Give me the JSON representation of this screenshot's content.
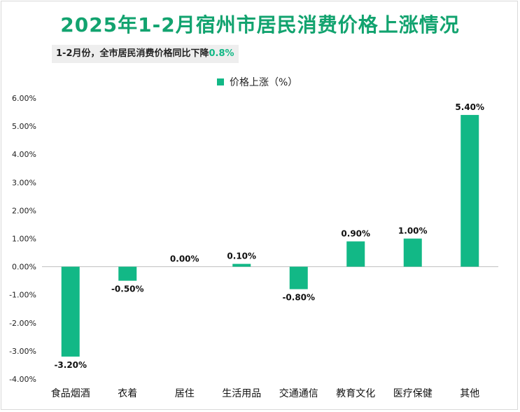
{
  "chart_data": {
    "type": "bar",
    "title": "2025年1-2月宿州市居民消费价格上涨情况",
    "subtitle": {
      "text": "1-2月份，全市居民消费价格同比下降",
      "highlight": "0.8%"
    },
    "legend_position": "top-center",
    "grid": false,
    "ylim": [
      -4.0,
      6.0
    ],
    "yticks": [
      "6.00%",
      "5.00%",
      "4.00%",
      "3.00%",
      "2.00%",
      "1.00%",
      "0.00%",
      "-1.00%",
      "-2.00%",
      "-3.00%",
      "-4.00%"
    ],
    "categories": [
      "食品烟酒",
      "衣着",
      "居住",
      "生活用品",
      "交通通信",
      "教育文化",
      "医疗保健",
      "其他"
    ],
    "series": [
      {
        "name": "价格上涨（%）",
        "values": [
          -3.2,
          -0.5,
          0.0,
          0.1,
          -0.8,
          0.9,
          1.0,
          5.4
        ],
        "labels": [
          "-3.20%",
          "-0.50%",
          "0.00%",
          "0.10%",
          "-0.80%",
          "0.90%",
          "1.00%",
          "5.40%"
        ]
      }
    ],
    "colors": {
      "bar": "#12b886",
      "title": "#12a36f",
      "axis": "#bfbfbf"
    }
  }
}
